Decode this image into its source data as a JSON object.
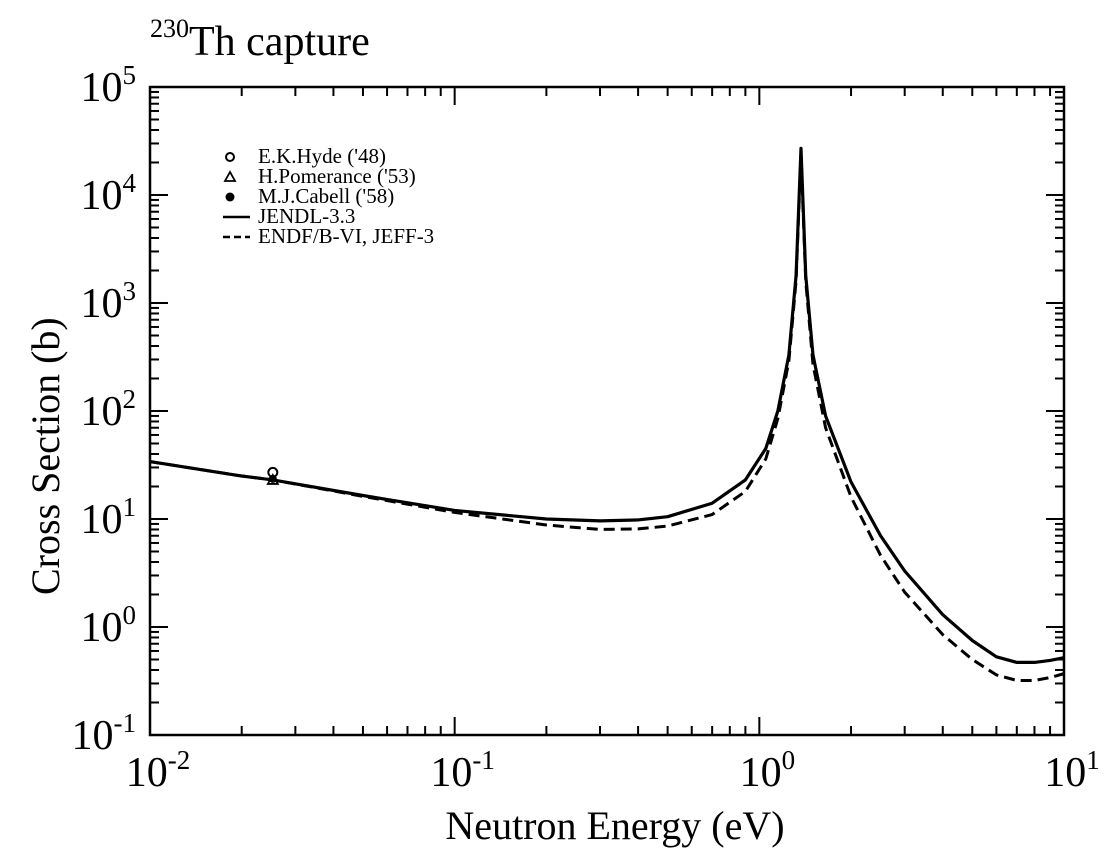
{
  "chart_data": {
    "type": "line",
    "title_mass_number": "230",
    "title_text": "Th capture",
    "xlabel": "Neutron Energy (eV)",
    "ylabel": "Cross Section (b)",
    "xscale": "log",
    "yscale": "log",
    "xlim": [
      0.01,
      10
    ],
    "ylim": [
      0.1,
      100000
    ],
    "x_ticks": [
      {
        "value": 0.01,
        "base": "10",
        "exp": "-2"
      },
      {
        "value": 0.1,
        "base": "10",
        "exp": "-1"
      },
      {
        "value": 1,
        "base": "10",
        "exp": "0"
      },
      {
        "value": 10,
        "base": "10",
        "exp": "1"
      }
    ],
    "y_ticks": [
      {
        "value": 0.1,
        "base": "10",
        "exp": "-1"
      },
      {
        "value": 1,
        "base": "10",
        "exp": "0"
      },
      {
        "value": 10,
        "base": "10",
        "exp": "1"
      },
      {
        "value": 100,
        "base": "10",
        "exp": "2"
      },
      {
        "value": 1000,
        "base": "10",
        "exp": "3"
      },
      {
        "value": 10000,
        "base": "10",
        "exp": "4"
      },
      {
        "value": 100000,
        "base": "10",
        "exp": "5"
      }
    ],
    "grid": false,
    "legend_position": "top-left",
    "series": [
      {
        "name": "E.K.Hyde ('48)",
        "kind": "points",
        "marker": "open-circle",
        "points": [
          {
            "x": 0.0253,
            "y": 27
          }
        ]
      },
      {
        "name": "H.Pomerance ('53)",
        "kind": "points",
        "marker": "open-triangle",
        "points": [
          {
            "x": 0.0253,
            "y": 23
          }
        ]
      },
      {
        "name": "M.J.Cabell ('58)",
        "kind": "points",
        "marker": "filled-circle",
        "points": [
          {
            "x": 0.0253,
            "y": 23.5
          }
        ]
      },
      {
        "name": "JENDL-3.3",
        "kind": "line",
        "style": "solid",
        "points": [
          {
            "x": 0.01,
            "y": 34
          },
          {
            "x": 0.02,
            "y": 25
          },
          {
            "x": 0.0253,
            "y": 23
          },
          {
            "x": 0.05,
            "y": 16.5
          },
          {
            "x": 0.1,
            "y": 12
          },
          {
            "x": 0.2,
            "y": 10
          },
          {
            "x": 0.3,
            "y": 9.6
          },
          {
            "x": 0.4,
            "y": 9.8
          },
          {
            "x": 0.5,
            "y": 10.5
          },
          {
            "x": 0.7,
            "y": 14
          },
          {
            "x": 0.9,
            "y": 23
          },
          {
            "x": 1.05,
            "y": 45
          },
          {
            "x": 1.15,
            "y": 100
          },
          {
            "x": 1.25,
            "y": 330
          },
          {
            "x": 1.32,
            "y": 1800
          },
          {
            "x": 1.37,
            "y": 27000
          },
          {
            "x": 1.42,
            "y": 1800
          },
          {
            "x": 1.5,
            "y": 330
          },
          {
            "x": 1.65,
            "y": 90
          },
          {
            "x": 2,
            "y": 22
          },
          {
            "x": 2.5,
            "y": 7
          },
          {
            "x": 3,
            "y": 3.3
          },
          {
            "x": 4,
            "y": 1.3
          },
          {
            "x": 5,
            "y": 0.75
          },
          {
            "x": 6,
            "y": 0.53
          },
          {
            "x": 7,
            "y": 0.47
          },
          {
            "x": 8,
            "y": 0.47
          },
          {
            "x": 9,
            "y": 0.49
          },
          {
            "x": 10,
            "y": 0.52
          }
        ]
      },
      {
        "name": "ENDF/B-VI, JEFF-3",
        "kind": "line",
        "style": "dashed",
        "points": [
          {
            "x": 0.01,
            "y": 34
          },
          {
            "x": 0.02,
            "y": 25
          },
          {
            "x": 0.0253,
            "y": 23
          },
          {
            "x": 0.05,
            "y": 16.2
          },
          {
            "x": 0.1,
            "y": 11.5
          },
          {
            "x": 0.2,
            "y": 8.8
          },
          {
            "x": 0.3,
            "y": 8
          },
          {
            "x": 0.4,
            "y": 8.1
          },
          {
            "x": 0.5,
            "y": 8.6
          },
          {
            "x": 0.7,
            "y": 11
          },
          {
            "x": 0.9,
            "y": 18
          },
          {
            "x": 1.05,
            "y": 36
          },
          {
            "x": 1.15,
            "y": 85
          },
          {
            "x": 1.25,
            "y": 290
          },
          {
            "x": 1.32,
            "y": 1600
          },
          {
            "x": 1.37,
            "y": 24000
          },
          {
            "x": 1.42,
            "y": 1600
          },
          {
            "x": 1.5,
            "y": 270
          },
          {
            "x": 1.65,
            "y": 70
          },
          {
            "x": 2,
            "y": 16
          },
          {
            "x": 2.5,
            "y": 4.6
          },
          {
            "x": 3,
            "y": 2.1
          },
          {
            "x": 4,
            "y": 0.85
          },
          {
            "x": 5,
            "y": 0.5
          },
          {
            "x": 6,
            "y": 0.36
          },
          {
            "x": 7,
            "y": 0.32
          },
          {
            "x": 8,
            "y": 0.32
          },
          {
            "x": 9,
            "y": 0.34
          },
          {
            "x": 10,
            "y": 0.37
          }
        ]
      }
    ]
  }
}
